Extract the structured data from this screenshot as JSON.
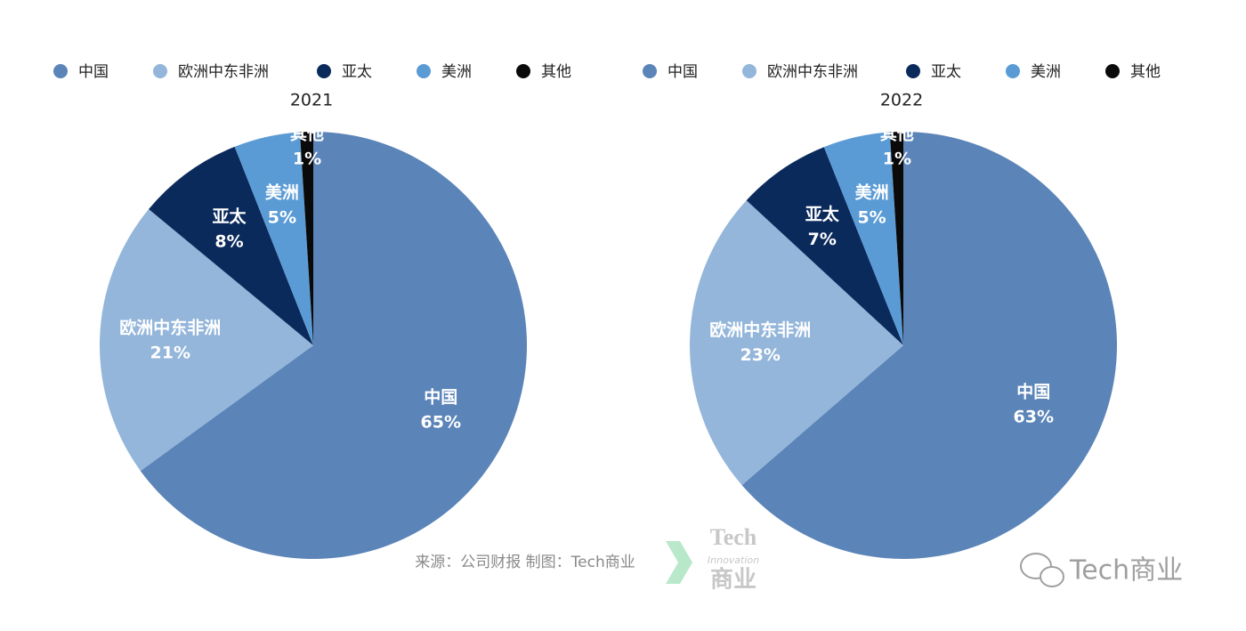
{
  "chart_data": [
    {
      "type": "pie",
      "title": "2021",
      "categories": [
        "中国",
        "欧洲中东非洲",
        "亚太",
        "美洲",
        "其他"
      ],
      "values": [
        65,
        21,
        8,
        5,
        1
      ],
      "value_labels": [
        "65%",
        "21%",
        "8%",
        "5%",
        "1%"
      ],
      "colors": [
        "#5b84b8",
        "#94b6da",
        "#0b2a5c",
        "#5b9bd5",
        "#0a0a0a"
      ],
      "legend": "top"
    },
    {
      "type": "pie",
      "title": "2022",
      "categories": [
        "中国",
        "欧洲中东非洲",
        "亚太",
        "美洲",
        "其他"
      ],
      "values": [
        63,
        23,
        7,
        5,
        1
      ],
      "value_labels": [
        "63%",
        "23%",
        "7%",
        "5%",
        "1%"
      ],
      "colors": [
        "#5b84b8",
        "#94b6da",
        "#0b2a5c",
        "#5b9bd5",
        "#0a0a0a"
      ],
      "legend": "top"
    }
  ],
  "source": "来源：公司财报 制图：Tech商业",
  "logo": {
    "top": "Tech",
    "middle": "Innovation",
    "bottom": "商业"
  },
  "watermark": "Tech商业"
}
